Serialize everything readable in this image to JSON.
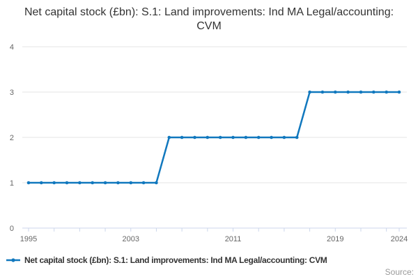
{
  "title": {
    "text": "Net capital stock (£bn): S.1: Land improvements: Ind MA Legal/accounting: CVM"
  },
  "legend": {
    "label": "Net capital stock (£bn): S.1: Land improvements: Ind MA Legal/accounting: CVM"
  },
  "source": {
    "label": "Source:"
  },
  "chart_data": {
    "type": "line",
    "title": "Net capital stock (£bn): S.1: Land improvements: Ind MA Legal/accounting: CVM",
    "x": [
      1995,
      1996,
      1997,
      1998,
      1999,
      2000,
      2001,
      2002,
      2003,
      2004,
      2005,
      2006,
      2007,
      2008,
      2009,
      2010,
      2011,
      2012,
      2013,
      2014,
      2015,
      2016,
      2017,
      2018,
      2019,
      2020,
      2021,
      2022,
      2023,
      2024
    ],
    "series": [
      {
        "name": "Net capital stock (£bn): S.1: Land improvements: Ind MA Legal/accounting: CVM",
        "values": [
          1,
          1,
          1,
          1,
          1,
          1,
          1,
          1,
          1,
          1,
          1,
          2,
          2,
          2,
          2,
          2,
          2,
          2,
          2,
          2,
          2,
          2,
          3,
          3,
          3,
          3,
          3,
          3,
          3,
          3
        ]
      }
    ],
    "xlabel": "",
    "ylabel": "",
    "ylim": [
      0,
      4
    ],
    "yticks": [
      0,
      1,
      2,
      3,
      4
    ],
    "xtick_interval": 2,
    "xtick_labels": [
      1995,
      2003,
      2011,
      2019,
      2024
    ],
    "grid": true,
    "legend_position": "bottom-left",
    "marker": "circle",
    "colors": {
      "series": "#1178be",
      "grid": "#e6e6e6",
      "axis": "#ccd6eb",
      "tick_labels": "#666666",
      "title": "#333333",
      "legend": "#333333",
      "source": "#999999"
    }
  }
}
